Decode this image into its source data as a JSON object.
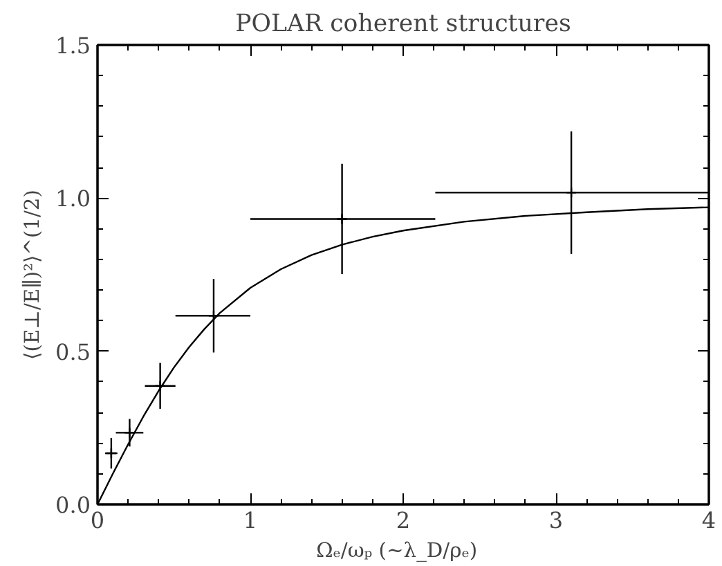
{
  "chart_data": {
    "type": "scatter",
    "title": "POLAR coherent structures",
    "xlabel": "Ωₑ/ωₚ   (~λ_D/ρₑ)",
    "ylabel": "⟨(E⊥/E∥)²⟩^(1/2)",
    "xlim": [
      0,
      4
    ],
    "ylim": [
      0,
      1.5
    ],
    "xticks": [
      0,
      1,
      2,
      3,
      4
    ],
    "yticks": [
      {
        "value": 0,
        "label": "0.0"
      },
      {
        "value": 0.5,
        "label": "0.5"
      },
      {
        "value": 1,
        "label": "1.0"
      },
      {
        "value": 1.5,
        "label": "1.5"
      }
    ],
    "grid": false,
    "series": [
      {
        "color": "#000000",
        "marker": "cross",
        "x": [
          0.09,
          0.21,
          0.41,
          0.76,
          1.6,
          3.1
        ],
        "values": [
          0.167,
          0.234,
          0.387,
          0.616,
          0.932,
          1.018
        ],
        "errors": [
          0.05,
          0.045,
          0.075,
          0.12,
          0.18,
          0.2
        ],
        "xerrors": [
          0.04,
          0.09,
          0.1,
          [
            0.51,
            1.0
          ],
          [
            1.0,
            2.21
          ],
          [
            2.21,
            4.0
          ]
        ]
      },
      {
        "type": "line",
        "color": "#000000",
        "line_style": "solid",
        "marker": "none",
        "x": [
          0,
          0.1,
          0.2,
          0.3,
          0.4,
          0.5,
          0.6,
          0.7,
          0.8,
          1.0,
          1.2,
          1.4,
          1.6,
          1.8,
          2.0,
          2.4,
          2.8,
          3.2,
          3.6,
          4.0
        ],
        "values": [
          0,
          0.1,
          0.196,
          0.287,
          0.371,
          0.447,
          0.514,
          0.573,
          0.625,
          0.707,
          0.768,
          0.814,
          0.848,
          0.874,
          0.894,
          0.923,
          0.942,
          0.954,
          0.964,
          0.97
        ]
      }
    ]
  }
}
